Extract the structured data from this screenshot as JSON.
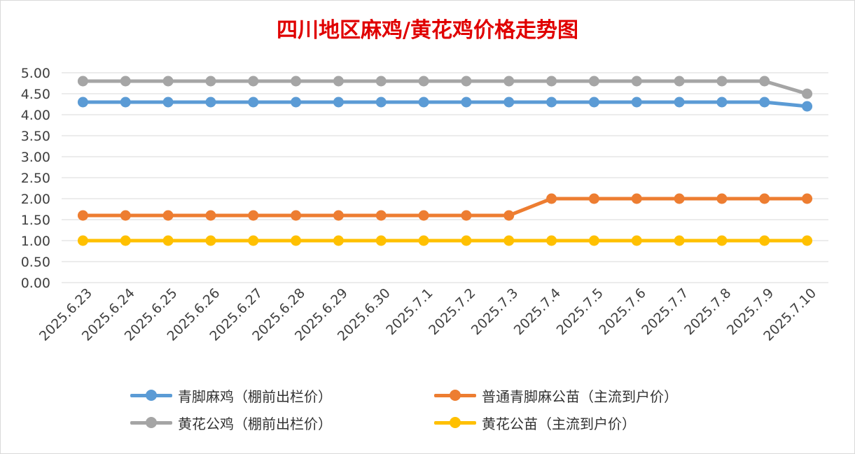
{
  "chart_data": {
    "type": "line",
    "title": "四川地区麻鸡/黄花鸡价格走势图",
    "xlabel": "",
    "ylabel": "",
    "ylim": [
      0,
      5
    ],
    "ytick_labels": [
      "0.00",
      "0.50",
      "1.00",
      "1.50",
      "2.00",
      "2.50",
      "3.00",
      "3.50",
      "4.00",
      "4.50",
      "5.00"
    ],
    "categories": [
      "2025.6.23",
      "2025.6.24",
      "2025.6.25",
      "2025.6.26",
      "2025.6.27",
      "2025.6.28",
      "2025.6.29",
      "2025.6.30",
      "2025.7.1",
      "2025.7.2",
      "2025.7.3",
      "2025.7.4",
      "2025.7.5",
      "2025.7.6",
      "2025.7.7",
      "2025.7.8",
      "2025.7.9",
      "2025.7.10"
    ],
    "grid": true,
    "legend_position": "bottom",
    "series": [
      {
        "name": "青脚麻鸡（棚前出栏价）",
        "color": "#5b9bd5",
        "values": [
          4.3,
          4.3,
          4.3,
          4.3,
          4.3,
          4.3,
          4.3,
          4.3,
          4.3,
          4.3,
          4.3,
          4.3,
          4.3,
          4.3,
          4.3,
          4.3,
          4.3,
          4.2
        ]
      },
      {
        "name": "普通青脚麻公苗（主流到户价）",
        "color": "#ed7d31",
        "values": [
          1.6,
          1.6,
          1.6,
          1.6,
          1.6,
          1.6,
          1.6,
          1.6,
          1.6,
          1.6,
          1.6,
          2.0,
          2.0,
          2.0,
          2.0,
          2.0,
          2.0,
          2.0
        ]
      },
      {
        "name": "黄花公鸡（棚前出栏价）",
        "color": "#a5a5a5",
        "values": [
          4.8,
          4.8,
          4.8,
          4.8,
          4.8,
          4.8,
          4.8,
          4.8,
          4.8,
          4.8,
          4.8,
          4.8,
          4.8,
          4.8,
          4.8,
          4.8,
          4.8,
          4.5
        ]
      },
      {
        "name": "黄花公苗（主流到户价）",
        "color": "#ffc000",
        "values": [
          1.0,
          1.0,
          1.0,
          1.0,
          1.0,
          1.0,
          1.0,
          1.0,
          1.0,
          1.0,
          1.0,
          1.0,
          1.0,
          1.0,
          1.0,
          1.0,
          1.0,
          1.0
        ]
      }
    ]
  }
}
